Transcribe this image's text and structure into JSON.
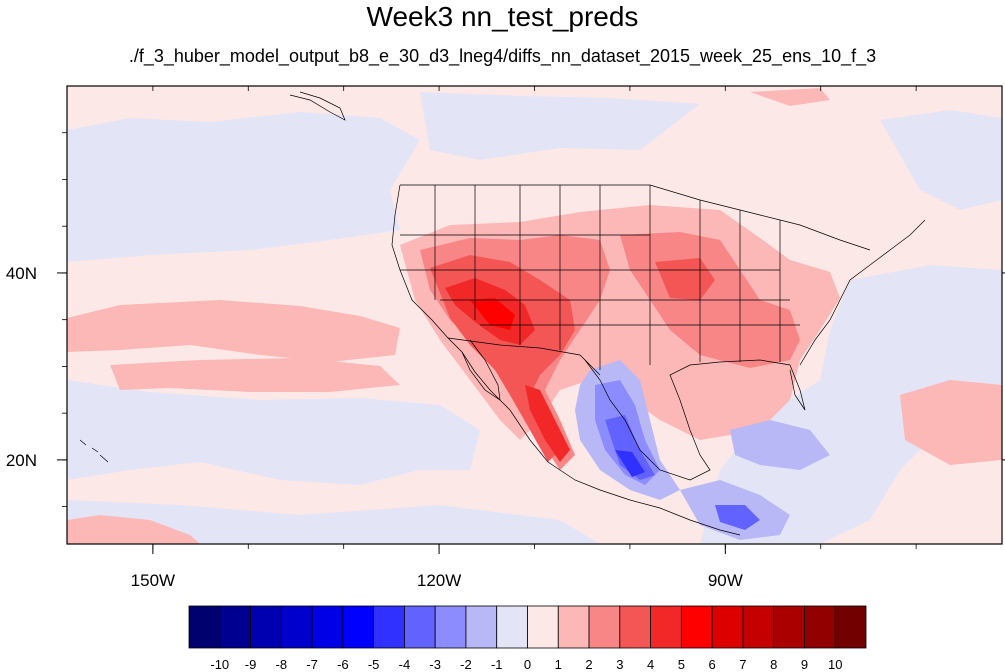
{
  "title": "Week3 nn_test_preds",
  "subtitle": "./f_3_huber_model_output_b8_e_30_d3_lneg4/diffs_nn_dataset_2015_week_25_ens_10_f_3",
  "map": {
    "lon_range": [
      -159,
      -61
    ],
    "lat_range": [
      11,
      60
    ],
    "lon_ticks": [
      {
        "value": -150,
        "label": "150W"
      },
      {
        "value": -120,
        "label": "120W"
      },
      {
        "value": -90,
        "label": "90W"
      }
    ],
    "lat_ticks": [
      {
        "value": 40,
        "label": "40N"
      },
      {
        "value": 20,
        "label": "20N"
      }
    ],
    "background_color": "#fde8e8"
  },
  "colorbar": {
    "labels": [
      "-10",
      "-9",
      "-8",
      "-7",
      "-6",
      "-5",
      "-4",
      "-3",
      "-2",
      "-1",
      "0",
      "1",
      "2",
      "3",
      "4",
      "5",
      "6",
      "7",
      "8",
      "9",
      "10"
    ],
    "colors": [
      "#00006e",
      "#000090",
      "#0000b0",
      "#0000cc",
      "#0000e6",
      "#0000ff",
      "#3030ff",
      "#6262ff",
      "#8c8cff",
      "#b8b8f6",
      "#e4e4f7",
      "#fde8e8",
      "#fcb7b7",
      "#f88686",
      "#f45656",
      "#f22828",
      "#ff0000",
      "#dd0000",
      "#c40000",
      "#aa0000",
      "#920000",
      "#720000"
    ]
  }
}
